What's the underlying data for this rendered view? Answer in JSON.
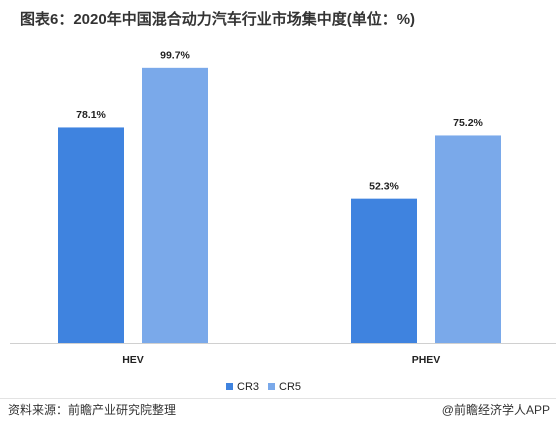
{
  "chart_data": {
    "type": "bar",
    "title": "图表6：2020年中国混合动力汽车行业市场集中度(单位：%)",
    "categories": [
      "HEV",
      "PHEV"
    ],
    "series": [
      {
        "name": "CR3",
        "color": "#3f83df",
        "values": [
          78.1,
          52.3
        ],
        "value_labels": [
          "78.1%",
          "52.3%"
        ]
      },
      {
        "name": "CR5",
        "color": "#7aa9ea",
        "values": [
          99.7,
          75.2
        ],
        "value_labels": [
          "99.7%",
          "75.2%"
        ]
      }
    ],
    "ylim": [
      0,
      100
    ],
    "legend": "bottom",
    "source": "资料来源：前瞻产业研究院整理",
    "credit": "@前瞻经济学人APP"
  }
}
